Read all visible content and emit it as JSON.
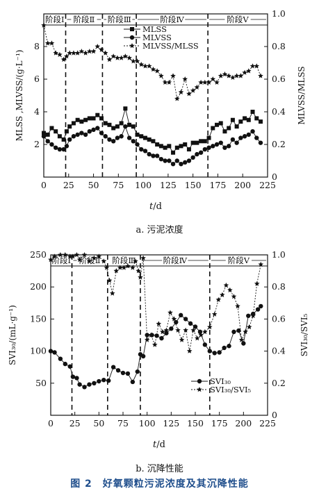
{
  "figure_caption": "图 2　好氧颗粒污泥浓度及其沉降性能",
  "chart_data": [
    {
      "type": "line",
      "caption": "a. 污泥浓度",
      "xlabel_var": "t",
      "xlabel_unit": "/d",
      "ylabel_left": "MLSS ,MLVSS/(g·L⁻¹)",
      "ylabel_right": "MLVSS/MLSS",
      "xlim": [
        0,
        225
      ],
      "ylim_left": [
        0,
        10
      ],
      "ylim_right": [
        0,
        1.0
      ],
      "xticks": [
        0,
        25,
        50,
        75,
        100,
        125,
        150,
        175,
        200,
        225
      ],
      "yticks_left": [
        2,
        4,
        6,
        8
      ],
      "yticks_right": [
        0,
        0.2,
        0.4,
        0.6,
        0.8,
        1.0
      ],
      "ytick_labels_right": [
        "0",
        "0.2",
        "0.4",
        "0.6",
        "0.8",
        "1.0"
      ],
      "phase_boundaries": [
        22,
        59,
        93,
        165
      ],
      "phases": [
        "阶段Ⅰ",
        "阶段Ⅱ",
        "阶段Ⅲ",
        "阶段Ⅳ",
        "阶段Ⅴ"
      ],
      "legend": [
        "MLSS",
        "MLVSS",
        "MLVSS/MLSS"
      ],
      "legend_position": "top-center",
      "series": [
        {
          "name": "MLSS",
          "axis": "left",
          "marker": "square",
          "x": [
            0,
            4,
            8,
            12,
            16,
            20,
            23,
            26,
            30,
            34,
            38,
            42,
            46,
            50,
            54,
            58,
            62,
            66,
            70,
            74,
            78,
            82,
            86,
            90,
            94,
            98,
            102,
            106,
            110,
            114,
            118,
            122,
            126,
            130,
            134,
            138,
            142,
            146,
            150,
            154,
            158,
            162,
            166,
            170,
            174,
            178,
            182,
            186,
            190,
            194,
            198,
            202,
            206,
            210,
            214,
            218
          ],
          "y": [
            2.7,
            2.6,
            3.0,
            2.8,
            2.5,
            2.3,
            2.8,
            3.1,
            3.3,
            3.5,
            3.4,
            3.5,
            3.6,
            3.6,
            3.8,
            3.6,
            3.3,
            3.2,
            3.0,
            3.1,
            3.3,
            4.2,
            3.2,
            3.1,
            2.6,
            2.5,
            2.4,
            2.3,
            2.2,
            2.0,
            1.9,
            1.8,
            1.9,
            1.5,
            1.8,
            1.9,
            2.0,
            1.7,
            2.1,
            2.1,
            2.2,
            2.2,
            2.4,
            3.0,
            3.2,
            3.3,
            2.8,
            3.0,
            3.5,
            3.1,
            3.4,
            3.6,
            3.5,
            4.0,
            3.6,
            3.4
          ]
        },
        {
          "name": "MLVSS",
          "axis": "left",
          "marker": "circle",
          "x": [
            0,
            4,
            8,
            12,
            16,
            20,
            23,
            26,
            30,
            34,
            38,
            42,
            46,
            50,
            54,
            58,
            62,
            66,
            70,
            74,
            78,
            82,
            86,
            90,
            94,
            98,
            102,
            106,
            110,
            114,
            118,
            122,
            126,
            130,
            134,
            138,
            142,
            146,
            150,
            154,
            158,
            162,
            166,
            170,
            174,
            178,
            182,
            186,
            190,
            194,
            198,
            202,
            206,
            210,
            214,
            218
          ],
          "y": [
            2.5,
            2.2,
            2.0,
            1.8,
            1.7,
            1.7,
            1.9,
            2.3,
            2.5,
            2.6,
            2.7,
            2.6,
            2.8,
            2.9,
            3.0,
            2.7,
            2.5,
            2.3,
            2.2,
            2.4,
            2.5,
            3.1,
            2.4,
            2.2,
            2.0,
            1.7,
            1.6,
            1.4,
            1.3,
            1.3,
            1.1,
            1.0,
            1.0,
            0.8,
            1.0,
            0.8,
            0.9,
            1.0,
            1.2,
            1.4,
            1.5,
            1.7,
            1.8,
            1.9,
            2.0,
            2.1,
            1.8,
            1.9,
            2.3,
            2.1,
            2.4,
            2.5,
            2.6,
            2.8,
            2.4,
            2.1
          ]
        },
        {
          "name": "MLVSS/MLSS",
          "axis": "right",
          "marker": "star",
          "x": [
            0,
            4,
            8,
            12,
            16,
            20,
            23,
            26,
            30,
            34,
            38,
            42,
            46,
            50,
            54,
            58,
            62,
            66,
            70,
            74,
            78,
            82,
            86,
            90,
            94,
            98,
            102,
            106,
            110,
            114,
            118,
            122,
            126,
            130,
            134,
            138,
            142,
            146,
            150,
            154,
            158,
            162,
            166,
            170,
            174,
            178,
            182,
            186,
            190,
            194,
            198,
            202,
            206,
            210,
            214,
            218
          ],
          "y": [
            0.93,
            0.82,
            0.82,
            0.76,
            0.75,
            0.72,
            0.74,
            0.76,
            0.76,
            0.76,
            0.77,
            0.76,
            0.77,
            0.77,
            0.8,
            0.78,
            0.76,
            0.72,
            0.74,
            0.73,
            0.73,
            0.74,
            0.73,
            0.71,
            0.71,
            0.69,
            0.68,
            0.68,
            0.66,
            0.65,
            0.62,
            0.58,
            0.58,
            0.62,
            0.48,
            0.52,
            0.6,
            0.51,
            0.53,
            0.55,
            0.58,
            0.58,
            0.58,
            0.6,
            0.58,
            0.62,
            0.63,
            0.62,
            0.61,
            0.62,
            0.62,
            0.64,
            0.65,
            0.68,
            0.68,
            0.62
          ]
        }
      ]
    },
    {
      "type": "line",
      "caption": "b. 沉降性能",
      "xlabel_var": "t",
      "xlabel_unit": "/d",
      "ylabel_left": "SVI₃₀/(mL·g⁻¹)",
      "ylabel_right": "SVI₃₀/SVI₅",
      "xlim": [
        0,
        225
      ],
      "ylim_left": [
        0,
        250
      ],
      "ylim_right": [
        0,
        1.0
      ],
      "xticks": [
        0,
        25,
        50,
        75,
        100,
        125,
        150,
        175,
        200,
        225
      ],
      "yticks_left": [
        50,
        100,
        150,
        200,
        250
      ],
      "yticks_right": [
        0,
        0.2,
        0.4,
        0.6,
        0.8,
        1.0
      ],
      "ytick_labels_right": [
        "0",
        "0.2",
        "0.4",
        "0.6",
        "0.8",
        "1.0"
      ],
      "phase_boundaries": [
        22,
        59,
        93,
        165
      ],
      "phases": [
        "阶段Ⅰ",
        "阶段Ⅱ",
        "阶段Ⅲ",
        "阶段Ⅳ",
        "阶段Ⅴ"
      ],
      "legend": [
        "SVI₃₀",
        "SVI₃₀/SVI₅"
      ],
      "legend_position": "center-right",
      "series": [
        {
          "name": "SVI₃₀",
          "axis": "left",
          "marker": "circle",
          "x": [
            0,
            4,
            10,
            15,
            20,
            23,
            27,
            30,
            35,
            40,
            45,
            50,
            55,
            60,
            65,
            70,
            75,
            80,
            85,
            90,
            93,
            96,
            100,
            105,
            110,
            115,
            120,
            125,
            130,
            135,
            140,
            145,
            150,
            155,
            160,
            165,
            170,
            175,
            180,
            185,
            190,
            195,
            200,
            205,
            210,
            215,
            218
          ],
          "y": [
            100,
            98,
            88,
            80,
            76,
            60,
            58,
            48,
            44,
            48,
            50,
            53,
            55,
            54,
            75,
            70,
            66,
            65,
            52,
            68,
            95,
            92,
            125,
            125,
            124,
            120,
            128,
            135,
            145,
            156,
            150,
            143,
            138,
            130,
            110,
            100,
            97,
            98,
            105,
            108,
            130,
            132,
            112,
            155,
            158,
            165,
            170
          ]
        },
        {
          "name": "SVI₃₀/SVI₅",
          "axis": "right",
          "marker": "star",
          "x": [
            0,
            4,
            10,
            15,
            20,
            23,
            27,
            30,
            35,
            40,
            45,
            50,
            55,
            58,
            61,
            64,
            68,
            72,
            76,
            80,
            85,
            88,
            91,
            93,
            96,
            100,
            104,
            108,
            112,
            116,
            120,
            124,
            128,
            132,
            136,
            140,
            144,
            148,
            152,
            156,
            160,
            165,
            170,
            174,
            178,
            182,
            186,
            190,
            194,
            198,
            202,
            206,
            210,
            214,
            218
          ],
          "y": [
            0.97,
            0.99,
            1.0,
            1.0,
            0.99,
            0.99,
            1.0,
            0.97,
            1.0,
            0.96,
            0.98,
            0.99,
            0.96,
            0.92,
            0.84,
            0.76,
            0.9,
            0.92,
            0.92,
            0.93,
            0.92,
            0.96,
            0.9,
            0.86,
            0.98,
            0.47,
            0.5,
            0.44,
            0.57,
            0.52,
            0.53,
            0.64,
            0.6,
            0.53,
            0.47,
            0.53,
            0.4,
            0.53,
            0.48,
            0.5,
            0.52,
            0.55,
            0.63,
            0.72,
            0.75,
            0.81,
            0.78,
            0.74,
            0.68,
            0.47,
            0.52,
            0.55,
            0.62,
            0.82,
            0.94
          ]
        }
      ]
    }
  ]
}
